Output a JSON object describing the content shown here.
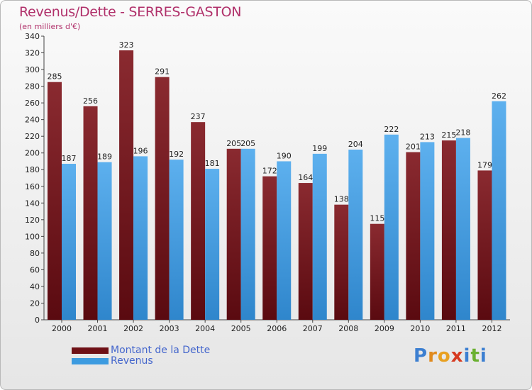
{
  "title": "Revenus/Dette - SERRES-GASTON",
  "subtitle": "(en milliers d'€)",
  "colors": {
    "dette": "#6e1016",
    "dette_light": "#8a2a30",
    "revenus": "#3c9be0",
    "revenus_light": "#5db0ee",
    "title": "#b0306a",
    "legend_text": "#4466cc"
  },
  "legend": {
    "dette_label": "Montant de la Dette",
    "revenus_label": "Revenus"
  },
  "logo": {
    "letters": [
      "P",
      "r",
      "o",
      "x",
      "i",
      "t",
      "i"
    ],
    "colors": [
      "#3c7fd1",
      "#e08a1e",
      "#e8a020",
      "#d63a20",
      "#3c7fd1",
      "#6ab030",
      "#3c7fd1"
    ]
  },
  "chart_data": {
    "type": "bar",
    "title": "Revenus/Dette - SERRES-GASTON",
    "subtitle": "(en milliers d'€)",
    "categories": [
      "2000",
      "2001",
      "2002",
      "2003",
      "2004",
      "2005",
      "2006",
      "2007",
      "2008",
      "2009",
      "2010",
      "2011",
      "2012"
    ],
    "series": [
      {
        "name": "Montant de la Dette",
        "values": [
          285,
          256,
          323,
          291,
          237,
          205,
          172,
          164,
          138,
          115,
          201,
          215,
          179
        ]
      },
      {
        "name": "Revenus",
        "values": [
          187,
          189,
          196,
          192,
          181,
          205,
          190,
          199,
          204,
          222,
          213,
          218,
          262
        ]
      }
    ],
    "ylim": [
      0,
      340
    ],
    "ytick_step": 20,
    "grid": false,
    "legend_position": "bottom-left"
  }
}
